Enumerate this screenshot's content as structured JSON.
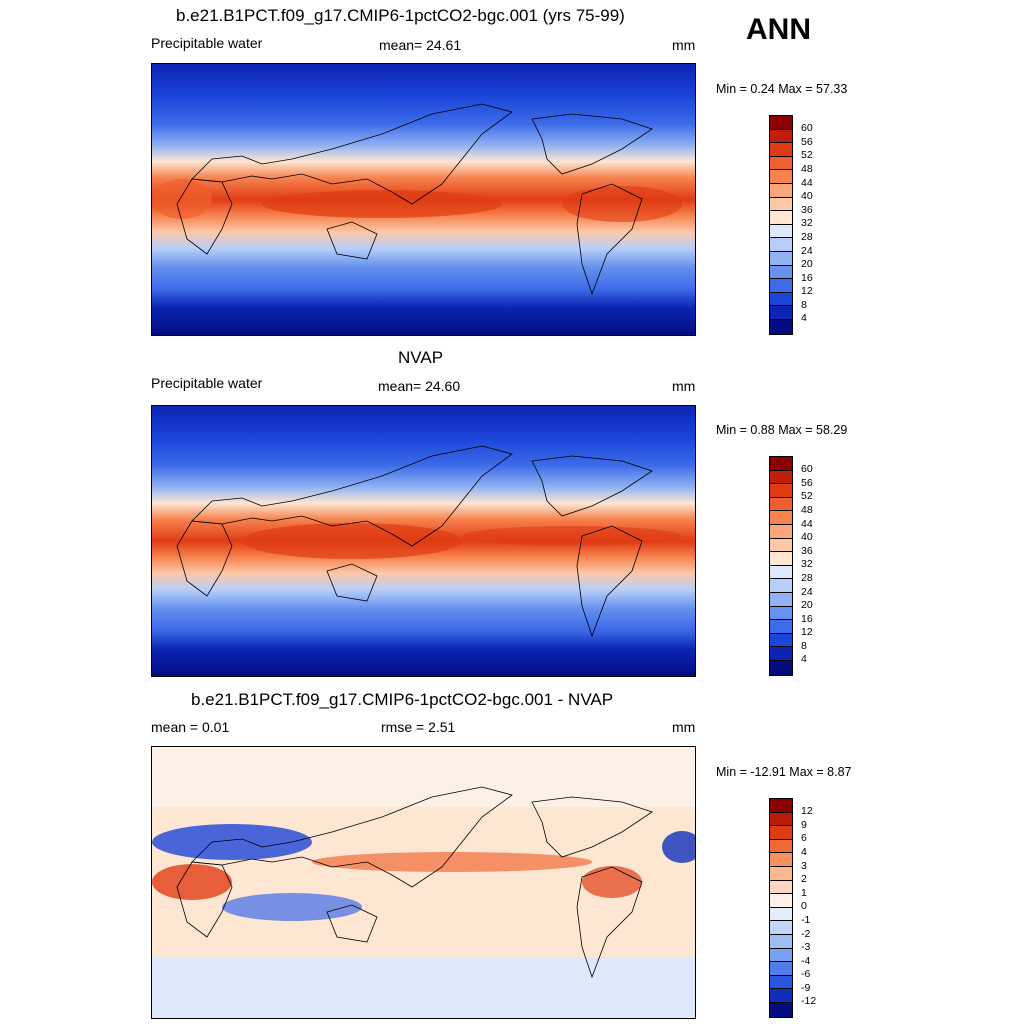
{
  "season": "ANN",
  "panels": [
    {
      "title": "b.e21.B1PCT.f09_g17.CMIP6-1pctCO2-bgc.001 (yrs 75-99)",
      "left_label": "Precipitable water",
      "center_label": "mean=  24.61",
      "units": "mm",
      "minmax": "Min =   0.24 Max =  57.33",
      "colorbar_labels": [
        "60",
        "56",
        "52",
        "48",
        "44",
        "40",
        "36",
        "32",
        "28",
        "24",
        "20",
        "16",
        "12",
        "8",
        "4"
      ],
      "colorbar_colors": [
        "#8b0000",
        "#c0200a",
        "#e03c14",
        "#f0602e",
        "#f7834f",
        "#f9a67c",
        "#fcc8a8",
        "#fde6d2",
        "#dde9fb",
        "#b7cff8",
        "#8fb2f3",
        "#6691ee",
        "#3d6be9",
        "#1c45d9",
        "#0b24b3",
        "#030c80"
      ]
    },
    {
      "title": "NVAP",
      "left_label": "Precipitable water",
      "center_label": "mean=  24.60",
      "units": "mm",
      "minmax": "Min =   0.88 Max =  58.29",
      "colorbar_labels": [
        "60",
        "56",
        "52",
        "48",
        "44",
        "40",
        "36",
        "32",
        "28",
        "24",
        "20",
        "16",
        "12",
        "8",
        "4"
      ],
      "colorbar_colors": [
        "#8b0000",
        "#c0200a",
        "#e03c14",
        "#f0602e",
        "#f7834f",
        "#f9a67c",
        "#fcc8a8",
        "#fde6d2",
        "#dde9fb",
        "#b7cff8",
        "#8fb2f3",
        "#6691ee",
        "#3d6be9",
        "#1c45d9",
        "#0b24b3",
        "#030c80"
      ]
    },
    {
      "title": "b.e21.B1PCT.f09_g17.CMIP6-1pctCO2-bgc.001 - NVAP",
      "left_label": "mean =   0.01",
      "center_label": "rmse =   2.51",
      "units": "mm",
      "minmax": "Min = -12.91 Max =   8.87",
      "colorbar_labels": [
        "12",
        "9",
        "6",
        "4",
        "3",
        "2",
        "1",
        "0",
        "-1",
        "-2",
        "-3",
        "-4",
        "-6",
        "-9",
        "-12"
      ],
      "colorbar_colors": [
        "#8b0000",
        "#b81c08",
        "#e03c14",
        "#f06a38",
        "#f7925e",
        "#fab790",
        "#fdd7bf",
        "#fdf0e6",
        "#e4edfb",
        "#c2d6f9",
        "#9ebdf4",
        "#789ff0",
        "#4f7de9",
        "#2a55df",
        "#0f2fba",
        "#030c80"
      ]
    }
  ]
}
